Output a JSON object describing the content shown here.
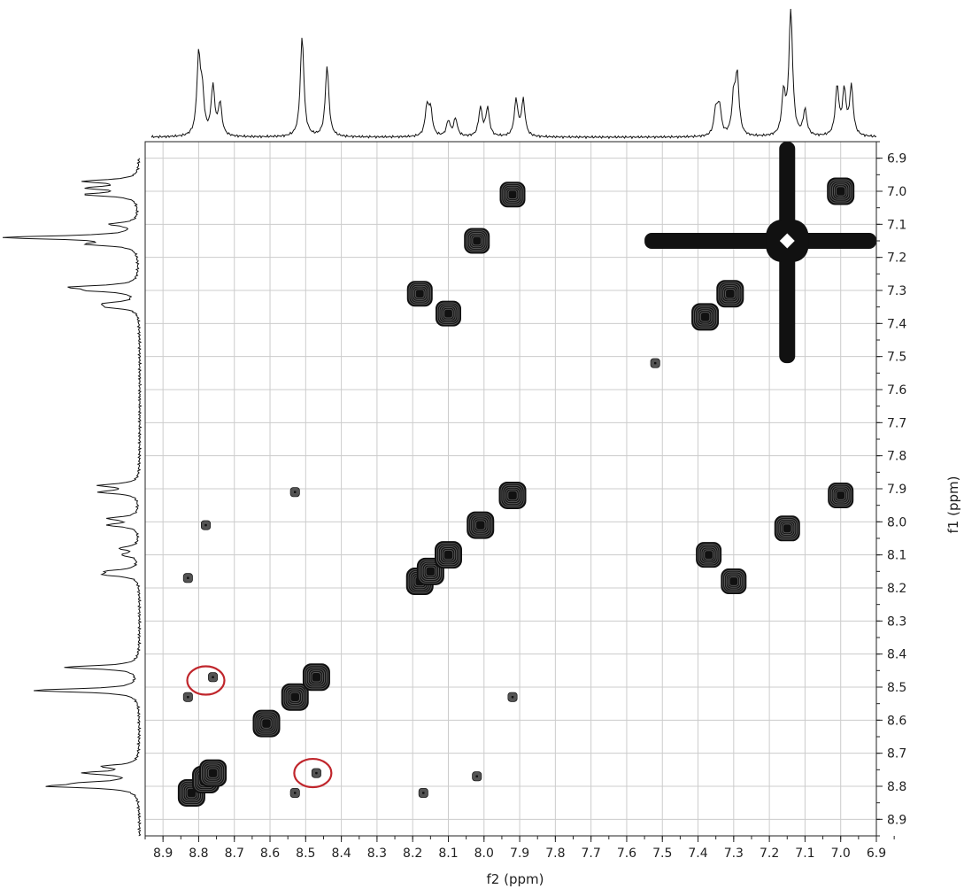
{
  "chart_data": {
    "type": "scatter",
    "subtype": "2D NMR COSY contour plot with 1D projections",
    "title": "",
    "xlabel": "f2 (ppm)",
    "ylabel": "f1 (ppm)",
    "x_reversed": true,
    "y_reversed_top_to_bottom": false,
    "xlim": [
      8.95,
      6.9
    ],
    "ylim": [
      6.85,
      8.95
    ],
    "x_ticks": [
      "8.9",
      "8.8",
      "8.7",
      "8.6",
      "8.5",
      "8.4",
      "8.3",
      "8.2",
      "8.1",
      "8.0",
      "7.9",
      "7.8",
      "7.7",
      "7.6",
      "7.5",
      "7.4",
      "7.3",
      "7.2",
      "7.1",
      "7.0",
      "6.9"
    ],
    "y_ticks": [
      "6.9",
      "7.0",
      "7.1",
      "7.2",
      "7.3",
      "7.4",
      "7.5",
      "7.6",
      "7.7",
      "7.8",
      "7.9",
      "8.0",
      "8.1",
      "8.2",
      "8.3",
      "8.4",
      "8.5",
      "8.6",
      "8.7",
      "8.8",
      "8.9"
    ],
    "grid": true,
    "diagonal_peaks": [
      {
        "x": 8.82,
        "y": 8.82
      },
      {
        "x": 8.78,
        "y": 8.78
      },
      {
        "x": 8.76,
        "y": 8.76
      },
      {
        "x": 8.61,
        "y": 8.61
      },
      {
        "x": 8.53,
        "y": 8.53
      },
      {
        "x": 8.47,
        "y": 8.47
      },
      {
        "x": 8.18,
        "y": 8.18
      },
      {
        "x": 8.15,
        "y": 8.15
      },
      {
        "x": 8.1,
        "y": 8.1
      },
      {
        "x": 8.01,
        "y": 8.01
      },
      {
        "x": 7.92,
        "y": 7.92
      },
      {
        "x": 7.38,
        "y": 7.38
      },
      {
        "x": 7.31,
        "y": 7.31
      },
      {
        "x": 7.15,
        "y": 7.15
      },
      {
        "x": 7.0,
        "y": 7.0
      }
    ],
    "cross_peaks": [
      {
        "x": 7.92,
        "y": 7.01
      },
      {
        "x": 8.02,
        "y": 7.15
      },
      {
        "x": 8.18,
        "y": 7.31
      },
      {
        "x": 8.1,
        "y": 7.37
      },
      {
        "x": 7.0,
        "y": 7.92
      },
      {
        "x": 7.15,
        "y": 8.02
      },
      {
        "x": 7.37,
        "y": 8.1
      },
      {
        "x": 7.3,
        "y": 8.18
      },
      {
        "x": 8.47,
        "y": 8.76
      },
      {
        "x": 8.76,
        "y": 8.47
      },
      {
        "x": 8.53,
        "y": 7.91
      },
      {
        "x": 8.78,
        "y": 8.01
      },
      {
        "x": 8.83,
        "y": 8.17
      },
      {
        "x": 8.83,
        "y": 8.53
      },
      {
        "x": 7.92,
        "y": 8.53
      },
      {
        "x": 8.17,
        "y": 8.82
      },
      {
        "x": 8.53,
        "y": 8.82
      },
      {
        "x": 8.02,
        "y": 8.77
      },
      {
        "x": 7.52,
        "y": 7.52
      }
    ],
    "highlighted_peaks": [
      {
        "x": 8.78,
        "y": 8.48
      },
      {
        "x": 8.48,
        "y": 8.76
      }
    ],
    "top_projection_peaks": [
      {
        "ppm": 8.8,
        "height": 0.6
      },
      {
        "ppm": 8.79,
        "height": 0.3
      },
      {
        "ppm": 8.76,
        "height": 0.38
      },
      {
        "ppm": 8.74,
        "height": 0.25
      },
      {
        "ppm": 8.51,
        "height": 0.78
      },
      {
        "ppm": 8.44,
        "height": 0.55
      },
      {
        "ppm": 8.16,
        "height": 0.22
      },
      {
        "ppm": 8.15,
        "height": 0.2
      },
      {
        "ppm": 8.1,
        "height": 0.12
      },
      {
        "ppm": 8.08,
        "height": 0.14
      },
      {
        "ppm": 8.01,
        "height": 0.22
      },
      {
        "ppm": 7.99,
        "height": 0.22
      },
      {
        "ppm": 7.91,
        "height": 0.28
      },
      {
        "ppm": 7.89,
        "height": 0.28
      },
      {
        "ppm": 7.35,
        "height": 0.2
      },
      {
        "ppm": 7.34,
        "height": 0.22
      },
      {
        "ppm": 7.3,
        "height": 0.28
      },
      {
        "ppm": 7.29,
        "height": 0.45
      },
      {
        "ppm": 7.16,
        "height": 0.32
      },
      {
        "ppm": 7.14,
        "height": 1.0
      },
      {
        "ppm": 7.1,
        "height": 0.2
      },
      {
        "ppm": 7.01,
        "height": 0.38
      },
      {
        "ppm": 6.99,
        "height": 0.34
      },
      {
        "ppm": 6.97,
        "height": 0.38
      }
    ],
    "colors": {
      "contour": "#111111",
      "grid": "#cccccc",
      "highlight": "#c0262c"
    }
  }
}
